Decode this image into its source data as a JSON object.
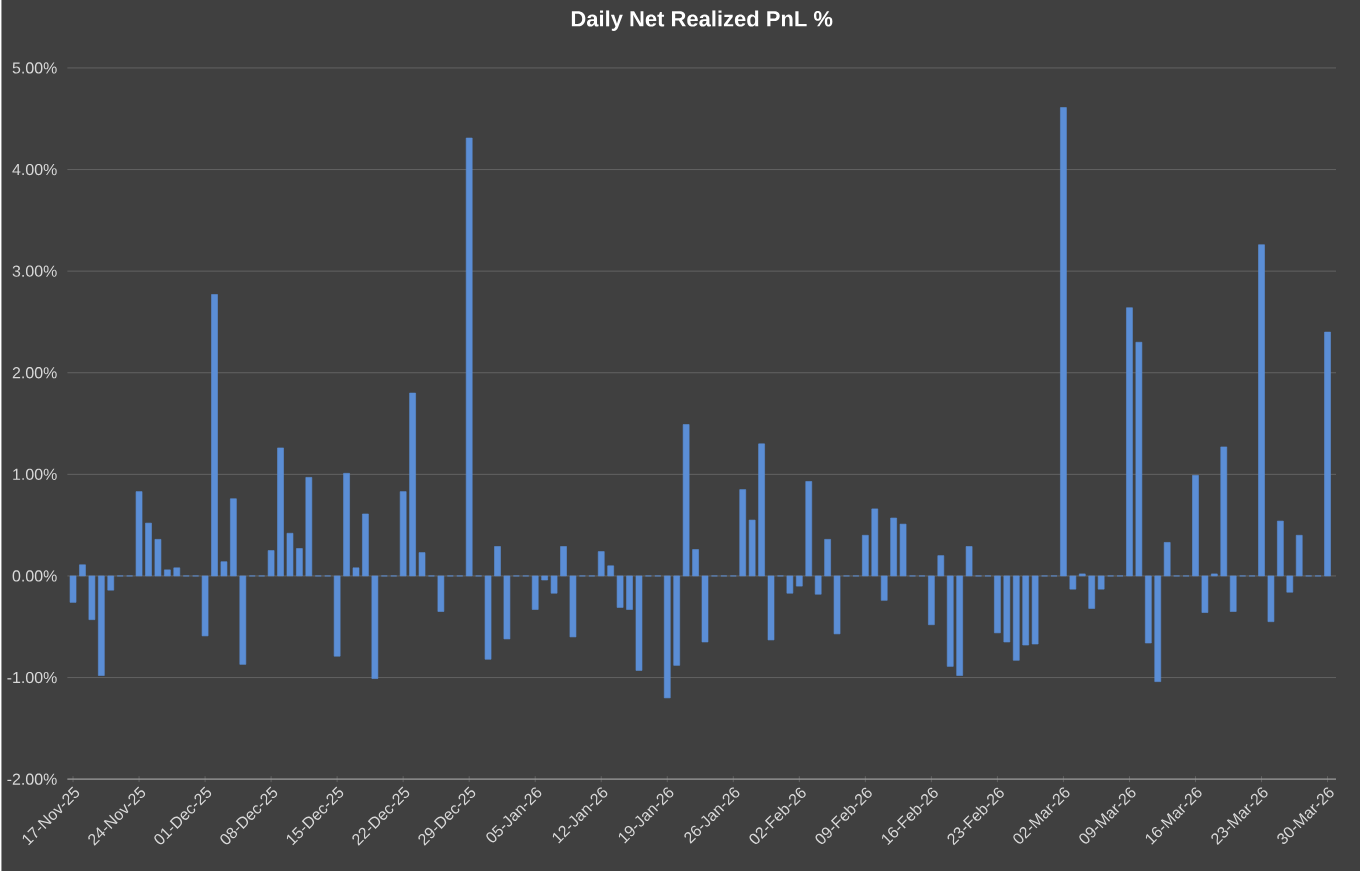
{
  "chart_data": {
    "type": "bar",
    "title": "Daily Net Realized PnL %",
    "categories": [
      "17-Nov-25",
      null,
      null,
      null,
      null,
      null,
      null,
      "24-Nov-25",
      null,
      null,
      null,
      null,
      null,
      null,
      "01-Dec-25",
      null,
      null,
      null,
      null,
      null,
      null,
      "08-Dec-25",
      null,
      null,
      null,
      null,
      null,
      null,
      "15-Dec-25",
      null,
      null,
      null,
      null,
      null,
      null,
      "22-Dec-25",
      null,
      null,
      null,
      null,
      null,
      null,
      "29-Dec-25",
      null,
      null,
      null,
      null,
      null,
      null,
      "05-Jan-26",
      null,
      null,
      null,
      null,
      null,
      null,
      "12-Jan-26",
      null,
      null,
      null,
      null,
      null,
      null,
      "19-Jan-26",
      null,
      null,
      null,
      null,
      null,
      null,
      "26-Jan-26",
      null,
      null,
      null,
      null,
      null,
      null,
      "02-Feb-26",
      null,
      null,
      null,
      null,
      null,
      null,
      "09-Feb-26",
      null,
      null,
      null,
      null,
      null,
      null,
      "16-Feb-26",
      null,
      null,
      null,
      null,
      null,
      null,
      "23-Feb-26",
      null,
      null,
      null,
      null,
      null,
      null,
      "02-Mar-26",
      null,
      null,
      null,
      null,
      null,
      null,
      "09-Mar-26",
      null,
      null,
      null,
      null,
      null,
      null,
      "16-Mar-26",
      null,
      null,
      null,
      null,
      null,
      null,
      "23-Mar-26",
      null,
      null,
      null,
      null,
      null,
      null,
      "30-Mar-26"
    ],
    "values": [
      -0.26,
      0.11,
      -0.43,
      -0.98,
      -0.14,
      0,
      0,
      0.83,
      0.52,
      0.36,
      0.06,
      0.08,
      0,
      0,
      -0.59,
      2.77,
      0.14,
      0.76,
      -0.87,
      0,
      0,
      0.25,
      1.26,
      0.42,
      0.27,
      0.97,
      0,
      0,
      -0.79,
      1.01,
      0.08,
      0.61,
      -1.01,
      0,
      0,
      0.83,
      1.8,
      0.23,
      0,
      -0.35,
      0,
      0,
      4.31,
      0,
      -0.82,
      0.29,
      -0.62,
      0,
      0,
      -0.33,
      -0.04,
      -0.17,
      0.29,
      -0.6,
      0,
      0,
      0.24,
      0.1,
      -0.31,
      -0.33,
      -0.93,
      0,
      0,
      -1.2,
      -0.88,
      1.49,
      0.26,
      -0.65,
      0,
      0,
      0,
      0.85,
      0.55,
      1.3,
      -0.63,
      0,
      -0.17,
      -0.1,
      0.93,
      -0.18,
      0.36,
      -0.57,
      0,
      0,
      0.4,
      0.66,
      -0.24,
      0.57,
      0.51,
      0,
      0,
      -0.48,
      0.2,
      -0.89,
      -0.98,
      0.29,
      0,
      0,
      -0.56,
      -0.65,
      -0.83,
      -0.68,
      -0.67,
      0,
      0,
      4.61,
      -0.13,
      0.02,
      -0.32,
      -0.13,
      0,
      0,
      2.64,
      2.3,
      -0.66,
      -1.04,
      0.33,
      0,
      0,
      0.99,
      -0.36,
      0.02,
      1.27,
      -0.35,
      0,
      0,
      3.26,
      -0.45,
      0.54,
      -0.16,
      0.4,
      0,
      0,
      2.4
    ],
    "color": "#5b8ed6",
    "ylim": [
      -2,
      5
    ],
    "yticks": [
      {
        "value": -2,
        "label": "-2.00%"
      },
      {
        "value": -1,
        "label": "-1.00%"
      },
      {
        "value": 0,
        "label": "0.00%"
      },
      {
        "value": 1,
        "label": "1.00%"
      },
      {
        "value": 2,
        "label": "2.00%"
      },
      {
        "value": 3,
        "label": "3.00%"
      },
      {
        "value": 4,
        "label": "4.00%"
      },
      {
        "value": 5,
        "label": "5.00%"
      }
    ],
    "grid": "y"
  }
}
